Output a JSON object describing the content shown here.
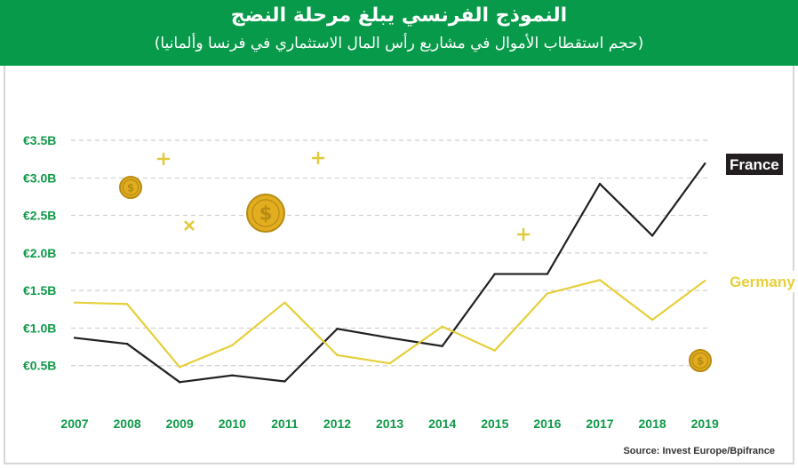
{
  "header": {
    "title": "النموذج الفرنسي يبلغ مرحلة النضج",
    "subtitle": "(حجم استقطاب الأموال في مشاريع رأس المال الاستثماري في فرنسا وألمانيا)"
  },
  "source": "Source: Invest Europe/Bpifrance",
  "colors": {
    "header_bg": "#079a4a",
    "axis_text": "#0f9a48",
    "france": "#231f20",
    "germany": "#e6cf3a",
    "grid": "#cfcfcf",
    "coin": "#e2ad1f",
    "sparkle": "#e0c93a"
  },
  "decorations": [
    "coin-icon",
    "coin-icon",
    "coin-icon",
    "sparkle-icon",
    "sparkle-icon",
    "sparkle-icon",
    "sparkle-icon"
  ],
  "chart_data": {
    "type": "line",
    "title": "النموذج الفرنسي يبلغ مرحلة النضج",
    "subtitle": "(حجم استقطاب الأموال في مشاريع رأس المال الاستثماري في فرنسا وألمانيا)",
    "categories": [
      "2007",
      "2008",
      "2009",
      "2010",
      "2011",
      "2012",
      "2013",
      "2014",
      "2015",
      "2016",
      "2017",
      "2018",
      "2019"
    ],
    "y_ticks": [
      {
        "value": 0.5,
        "label": "€0.5B"
      },
      {
        "value": 1.0,
        "label": "€1.0B"
      },
      {
        "value": 1.5,
        "label": "€1.5B"
      },
      {
        "value": 2.0,
        "label": "€2.0B"
      },
      {
        "value": 2.5,
        "label": "€2.5B"
      },
      {
        "value": 3.0,
        "label": "€3.0B"
      },
      {
        "value": 3.5,
        "label": "€3.5B"
      }
    ],
    "ylim": [
      0,
      3.5
    ],
    "grid": true,
    "series": [
      {
        "name": "France",
        "color": "#231f20",
        "values": [
          0.87,
          0.79,
          0.28,
          0.37,
          0.29,
          0.99,
          0.87,
          0.76,
          1.72,
          1.72,
          2.92,
          2.23,
          3.19
        ]
      },
      {
        "name": "Germany",
        "color": "#e6cf3a",
        "values": [
          1.34,
          1.32,
          0.48,
          0.77,
          1.34,
          0.64,
          0.53,
          1.02,
          0.7,
          1.46,
          1.64,
          1.11,
          1.63
        ]
      }
    ]
  }
}
